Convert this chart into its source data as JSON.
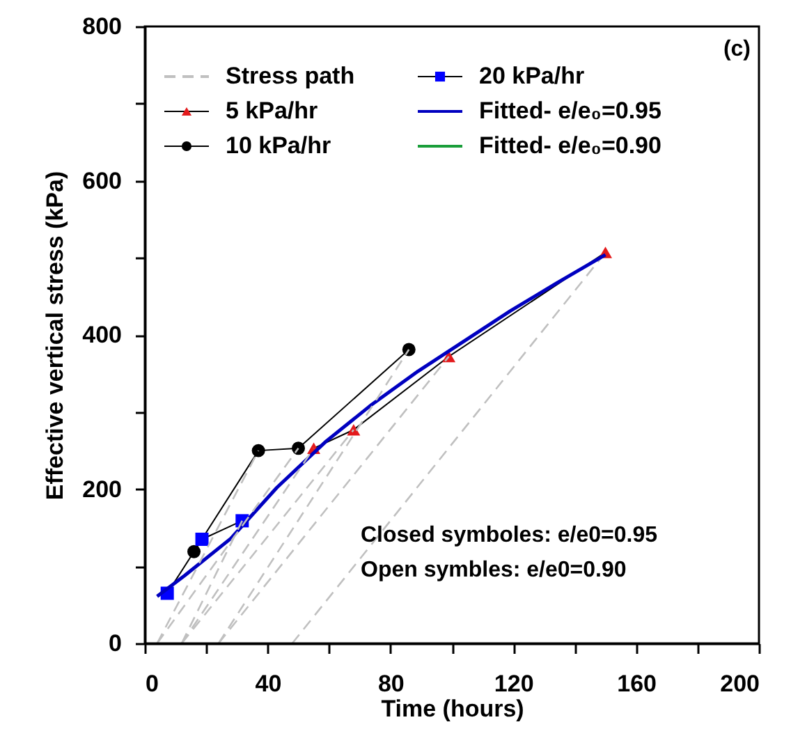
{
  "chart_data": {
    "type": "line",
    "xlabel": "Time (hours)",
    "ylabel": "Effective vertical stress (kPa)",
    "xlim": [
      0,
      200
    ],
    "ylim": [
      0,
      800
    ],
    "xticks": [
      0,
      {
        "value": 20,
        "label": null
      },
      40,
      {
        "value": 60,
        "label": null
      },
      80,
      {
        "value": 100,
        "label": null
      },
      120,
      {
        "value": 140,
        "label": null
      },
      160,
      {
        "value": 180,
        "label": null
      },
      200
    ],
    "yticks": [
      0,
      {
        "value": 100,
        "label": null
      },
      200,
      {
        "value": 300,
        "label": null
      },
      400,
      {
        "value": 500,
        "label": null
      },
      600,
      {
        "value": 700,
        "label": null
      },
      800
    ],
    "grid": false,
    "legend": "top left",
    "annotations": [
      "(c)",
      "Closed symboles: e/e0=0.95",
      "Open symbles: e/e0=0.90"
    ],
    "series": [
      {
        "name": "Stress path",
        "color": "#c0c0c0",
        "line_style": "dashed",
        "marker": "none",
        "x": [
          150,
          48
        ],
        "values": [
          507,
          0
        ]
      },
      {
        "name": "5 kPa/hr",
        "color": "#e31a1c",
        "line_style": "solid",
        "marker": "triangle",
        "x": [
          55,
          68,
          99,
          150
        ],
        "values": [
          253,
          277,
          372,
          507
        ]
      },
      {
        "name": "10 kPa/hr",
        "color": "#000000",
        "line_style": "solid",
        "marker": "circle",
        "x": [
          16,
          37,
          50,
          86
        ],
        "values": [
          119,
          250,
          253,
          381
        ]
      },
      {
        "name": "20 kPa/hr",
        "color": "#0000ff",
        "line_style": "solid",
        "marker": "square",
        "x": [
          7.3,
          18.6,
          31.7
        ],
        "values": [
          65,
          135,
          159
        ]
      },
      {
        "name": "Fitted- e/e₀=0.95",
        "color": "#0000c0",
        "line_style": "solid",
        "marker": "none",
        "x": [
          4,
          13,
          28,
          43,
          59,
          74,
          89,
          104,
          119,
          134,
          150
        ],
        "values": [
          61,
          88,
          136,
          202,
          262,
          310,
          353,
          392,
          431,
          467,
          504
        ]
      },
      {
        "name": "Fitted- e/e₀=0.90",
        "color": "#1a9e3a",
        "marker": "none",
        "line_style": "solid",
        "values": [
          null
        ]
      },
      {
        "color": "#c0c0c0",
        "line_style": "dashed",
        "marker": "none",
        "x": [
          99,
          24
        ],
        "values": [
          372,
          0
        ]
      },
      {
        "color": "#c0c0c0",
        "line_style": "dashed",
        "marker": "none",
        "x": [
          86,
          24
        ],
        "values": [
          381,
          0
        ]
      },
      {
        "color": "#c0c0c0",
        "line_style": "dashed",
        "marker": "none",
        "x": [
          68,
          12
        ],
        "values": [
          277,
          0
        ]
      },
      {
        "color": "#c0c0c0",
        "line_style": "dashed",
        "marker": "none",
        "x": [
          55,
          12
        ],
        "values": [
          253,
          0
        ]
      },
      {
        "color": "#c0c0c0",
        "line_style": "dashed",
        "marker": "none",
        "x": [
          50,
          4
        ],
        "values": [
          253,
          0
        ]
      },
      {
        "color": "#c0c0c0",
        "line_style": "dashed",
        "marker": "none",
        "x": [
          37,
          4
        ],
        "values": [
          250,
          0
        ]
      },
      {
        "color": "#c0c0c0",
        "line_style": "dashed",
        "marker": "none",
        "x": [
          31.7,
          12
        ],
        "values": [
          159,
          0
        ]
      }
    ]
  }
}
